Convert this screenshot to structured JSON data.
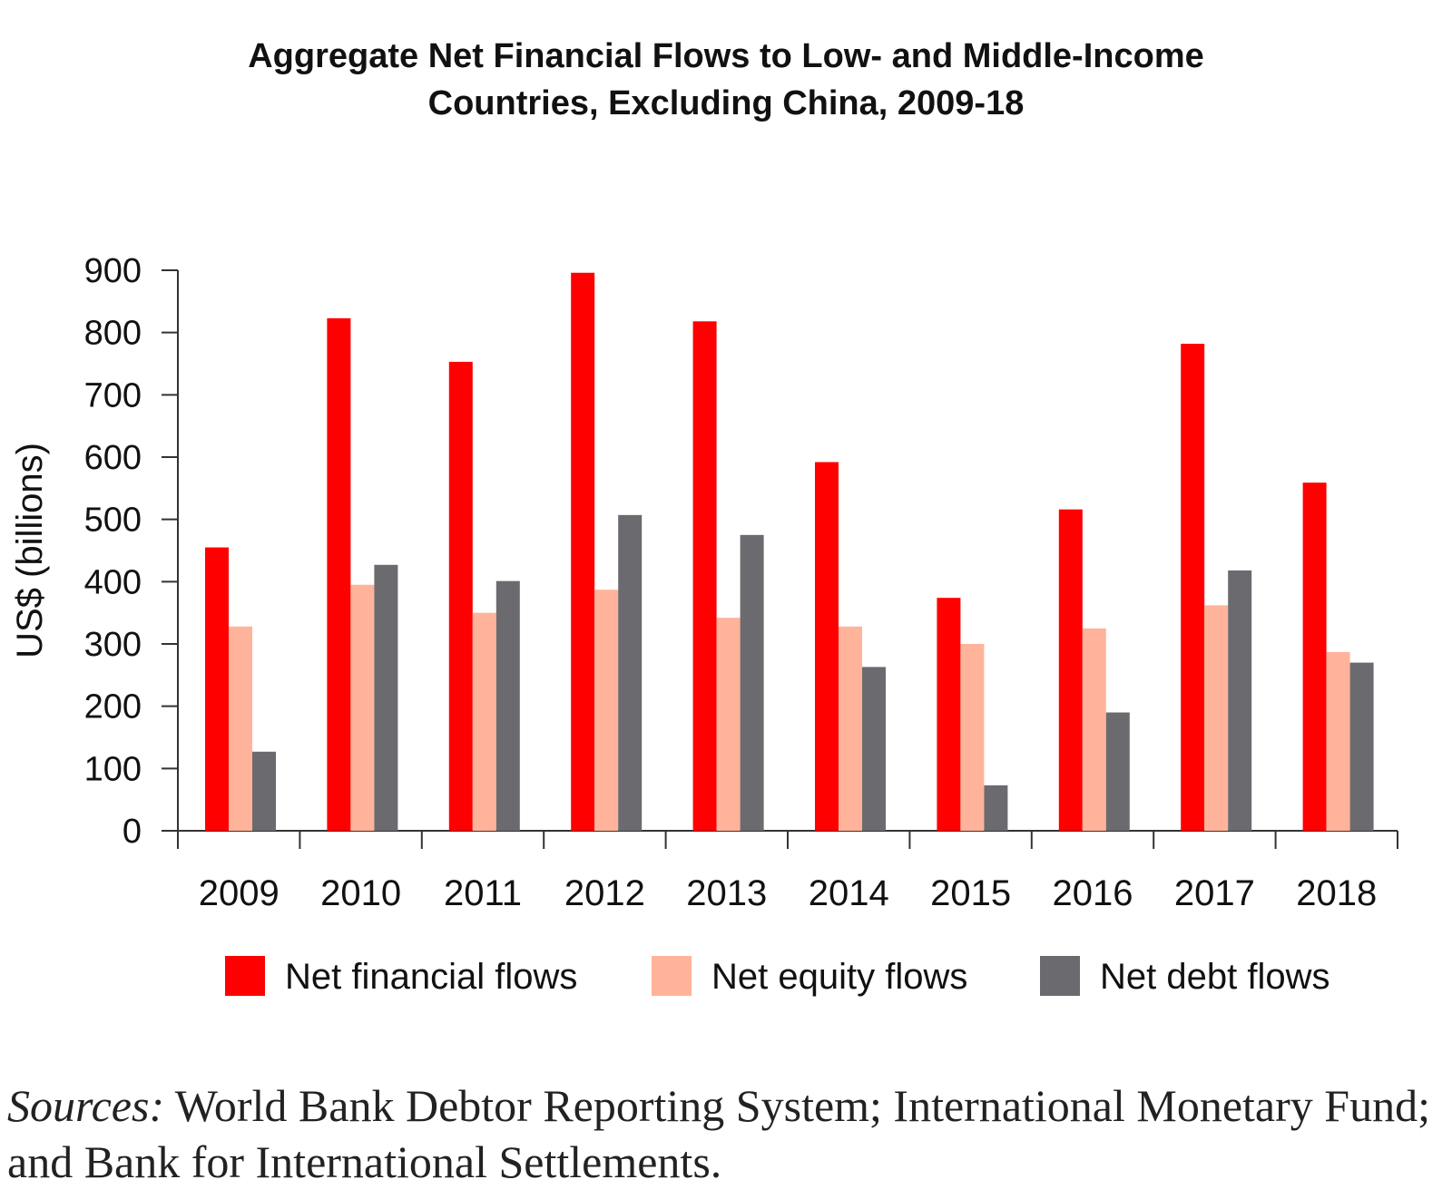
{
  "chart_data": {
    "type": "bar",
    "title_lines": [
      "Aggregate Net Financial Flows to Low- and Middle-Income",
      "Countries, Excluding China, 2009-18"
    ],
    "ylabel": "US$ (billions)",
    "xlabel": "",
    "ylim": [
      0,
      900
    ],
    "yticks": [
      0,
      100,
      200,
      300,
      400,
      500,
      600,
      700,
      800,
      900
    ],
    "categories": [
      "2009",
      "2010",
      "2011",
      "2012",
      "2013",
      "2014",
      "2015",
      "2016",
      "2017",
      "2018"
    ],
    "series": [
      {
        "name": "Net financial flows",
        "color": "#ff0000",
        "values": [
          455,
          823,
          753,
          896,
          818,
          592,
          374,
          516,
          782,
          559
        ]
      },
      {
        "name": "Net equity flows",
        "color": "#ffb39a",
        "values": [
          328,
          395,
          350,
          387,
          342,
          328,
          300,
          325,
          362,
          287
        ]
      },
      {
        "name": "Net debt flows",
        "color": "#6b6b6f",
        "values": [
          127,
          427,
          401,
          507,
          475,
          263,
          73,
          190,
          418,
          270
        ]
      }
    ],
    "grid": false,
    "legend": "bottom"
  },
  "sources": {
    "label": "Sources:",
    "text": " World Bank Debtor Reporting System; International Monetary Fund; and Bank for International Settlements."
  }
}
